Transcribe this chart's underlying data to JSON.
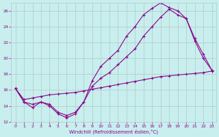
{
  "xlabel": "Windchill (Refroidissement éolien,°C)",
  "xlim": [
    -0.5,
    23.5
  ],
  "ylim": [
    12,
    27
  ],
  "yticks": [
    12,
    14,
    16,
    18,
    20,
    22,
    24,
    26
  ],
  "xticks": [
    0,
    1,
    2,
    3,
    4,
    5,
    6,
    7,
    8,
    9,
    10,
    11,
    12,
    13,
    14,
    15,
    16,
    17,
    18,
    19,
    20,
    21,
    22,
    23
  ],
  "bg_color": "#c8eeee",
  "line_color": "#880088",
  "grid_color": "#b0c8c8",
  "line1_x": [
    0,
    1,
    2,
    3,
    4,
    5,
    6,
    7,
    8,
    9,
    10,
    11,
    12,
    13,
    14,
    15,
    16,
    17,
    18,
    19,
    20,
    21,
    22,
    23
  ],
  "line1_y": [
    16.2,
    14.5,
    13.8,
    14.5,
    14.0,
    13.0,
    12.5,
    13.0,
    14.5,
    17.2,
    19.0,
    20.0,
    21.0,
    22.8,
    24.0,
    25.5,
    26.3,
    27.0,
    26.4,
    26.0,
    25.0,
    22.2,
    20.0,
    18.5
  ],
  "line2_x": [
    0,
    1,
    2,
    3,
    4,
    5,
    6,
    7,
    8,
    9,
    10,
    11,
    12,
    13,
    14,
    15,
    16,
    17,
    18,
    19,
    20,
    21,
    22,
    23
  ],
  "line2_y": [
    16.2,
    14.5,
    14.2,
    14.5,
    14.2,
    13.2,
    12.8,
    13.2,
    14.5,
    16.5,
    17.5,
    18.2,
    19.2,
    20.2,
    21.2,
    22.8,
    24.0,
    25.2,
    26.2,
    25.5,
    25.0,
    22.5,
    20.5,
    18.5
  ],
  "line3_x": [
    0,
    1,
    2,
    3,
    4,
    5,
    6,
    7,
    8,
    9,
    10,
    11,
    12,
    13,
    14,
    15,
    16,
    17,
    18,
    19,
    20,
    21,
    22,
    23
  ],
  "line3_y": [
    16.2,
    14.8,
    15.0,
    15.2,
    15.4,
    15.5,
    15.6,
    15.7,
    15.9,
    16.1,
    16.3,
    16.5,
    16.7,
    16.9,
    17.1,
    17.3,
    17.5,
    17.7,
    17.8,
    17.9,
    18.0,
    18.1,
    18.2,
    18.4
  ]
}
